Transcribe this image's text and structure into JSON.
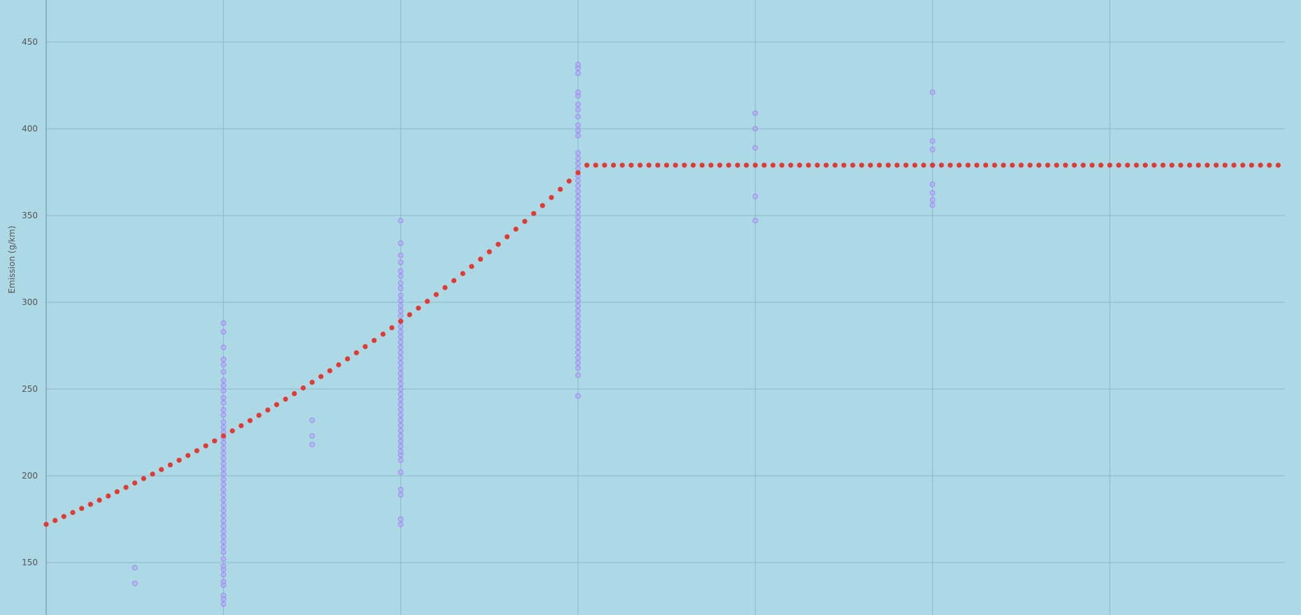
{
  "chart_data": {
    "type": "scatter",
    "ylabel": "Emission (g/km)",
    "ylim": [
      120,
      475
    ],
    "xlim": [
      0,
      7
    ],
    "y_ticks": [
      "150",
      "200",
      "250",
      "300",
      "350",
      "400",
      "450"
    ],
    "x_ticks": [],
    "grid": true,
    "colors": {
      "background": "#add8e6",
      "grid": "#8fb8c8",
      "axis": "#6a8a99",
      "observed": "#b7a8f5",
      "observed_stroke": "#9b8af0",
      "fitted": "#e03a33"
    },
    "series": [
      {
        "kind": "observed",
        "points": [
          [
            0.5,
            147
          ],
          [
            0.5,
            138
          ],
          [
            1,
            126
          ],
          [
            1,
            129
          ],
          [
            1,
            131
          ],
          [
            1,
            137
          ],
          [
            1,
            139
          ],
          [
            1,
            143
          ],
          [
            1,
            146
          ],
          [
            1,
            148
          ],
          [
            1,
            152
          ],
          [
            1,
            156
          ],
          [
            1,
            159
          ],
          [
            1,
            162
          ],
          [
            1,
            165
          ],
          [
            1,
            168
          ],
          [
            1,
            171
          ],
          [
            1,
            174
          ],
          [
            1,
            177
          ],
          [
            1,
            180
          ],
          [
            1,
            183
          ],
          [
            1,
            186
          ],
          [
            1,
            189
          ],
          [
            1,
            192
          ],
          [
            1,
            195
          ],
          [
            1,
            198
          ],
          [
            1,
            201
          ],
          [
            1,
            204
          ],
          [
            1,
            207
          ],
          [
            1,
            210
          ],
          [
            1,
            213
          ],
          [
            1,
            216
          ],
          [
            1,
            219
          ],
          [
            1,
            222
          ],
          [
            1,
            225
          ],
          [
            1,
            228
          ],
          [
            1,
            231
          ],
          [
            1,
            235
          ],
          [
            1,
            238
          ],
          [
            1,
            242
          ],
          [
            1,
            245
          ],
          [
            1,
            249
          ],
          [
            1,
            252
          ],
          [
            1,
            255
          ],
          [
            1,
            260
          ],
          [
            1,
            264
          ],
          [
            1,
            267
          ],
          [
            1,
            274
          ],
          [
            1,
            283
          ],
          [
            1,
            288
          ],
          [
            1.5,
            218
          ],
          [
            1.5,
            223
          ],
          [
            1.5,
            232
          ],
          [
            2,
            172
          ],
          [
            2,
            175
          ],
          [
            2,
            189
          ],
          [
            2,
            192
          ],
          [
            2,
            202
          ],
          [
            2,
            209
          ],
          [
            2,
            212
          ],
          [
            2,
            214
          ],
          [
            2,
            217
          ],
          [
            2,
            220
          ],
          [
            2,
            223
          ],
          [
            2,
            226
          ],
          [
            2,
            229
          ],
          [
            2,
            232
          ],
          [
            2,
            235
          ],
          [
            2,
            238
          ],
          [
            2,
            241
          ],
          [
            2,
            244
          ],
          [
            2,
            247
          ],
          [
            2,
            250
          ],
          [
            2,
            253
          ],
          [
            2,
            256
          ],
          [
            2,
            259
          ],
          [
            2,
            262
          ],
          [
            2,
            265
          ],
          [
            2,
            268
          ],
          [
            2,
            271
          ],
          [
            2,
            274
          ],
          [
            2,
            277
          ],
          [
            2,
            280
          ],
          [
            2,
            283
          ],
          [
            2,
            286
          ],
          [
            2,
            289
          ],
          [
            2,
            292
          ],
          [
            2,
            295
          ],
          [
            2,
            298
          ],
          [
            2,
            301
          ],
          [
            2,
            304
          ],
          [
            2,
            308
          ],
          [
            2,
            311
          ],
          [
            2,
            315
          ],
          [
            2,
            318
          ],
          [
            2,
            323
          ],
          [
            2,
            327
          ],
          [
            2,
            334
          ],
          [
            2,
            347
          ],
          [
            3,
            246
          ],
          [
            3,
            258
          ],
          [
            3,
            262
          ],
          [
            3,
            265
          ],
          [
            3,
            268
          ],
          [
            3,
            271
          ],
          [
            3,
            274
          ],
          [
            3,
            277
          ],
          [
            3,
            280
          ],
          [
            3,
            283
          ],
          [
            3,
            286
          ],
          [
            3,
            289
          ],
          [
            3,
            292
          ],
          [
            3,
            295
          ],
          [
            3,
            298
          ],
          [
            3,
            301
          ],
          [
            3,
            304
          ],
          [
            3,
            307
          ],
          [
            3,
            310
          ],
          [
            3,
            313
          ],
          [
            3,
            316
          ],
          [
            3,
            319
          ],
          [
            3,
            322
          ],
          [
            3,
            325
          ],
          [
            3,
            328
          ],
          [
            3,
            331
          ],
          [
            3,
            334
          ],
          [
            3,
            337
          ],
          [
            3,
            340
          ],
          [
            3,
            343
          ],
          [
            3,
            346
          ],
          [
            3,
            349
          ],
          [
            3,
            352
          ],
          [
            3,
            355
          ],
          [
            3,
            358
          ],
          [
            3,
            361
          ],
          [
            3,
            364
          ],
          [
            3,
            367
          ],
          [
            3,
            370
          ],
          [
            3,
            373
          ],
          [
            3,
            377
          ],
          [
            3,
            380
          ],
          [
            3,
            383
          ],
          [
            3,
            386
          ],
          [
            3,
            396
          ],
          [
            3,
            399
          ],
          [
            3,
            402
          ],
          [
            3,
            407
          ],
          [
            3,
            411
          ],
          [
            3,
            414
          ],
          [
            3,
            419
          ],
          [
            3,
            421
          ],
          [
            3,
            432
          ],
          [
            3,
            435
          ],
          [
            3,
            437
          ],
          [
            4,
            347
          ],
          [
            4,
            361
          ],
          [
            4,
            389
          ],
          [
            4,
            400
          ],
          [
            4,
            409
          ],
          [
            5,
            356
          ],
          [
            5,
            359
          ],
          [
            5,
            363
          ],
          [
            5,
            368
          ],
          [
            5,
            379
          ],
          [
            5,
            388
          ],
          [
            5,
            393
          ],
          [
            5,
            421
          ]
        ]
      },
      {
        "kind": "fitted",
        "curve": {
          "x_start": 0,
          "x_end": 7,
          "step": 0.05,
          "cap_x": 3.6,
          "cap_y": 379,
          "y0": 172,
          "slope": 0.0041
        }
      }
    ]
  }
}
